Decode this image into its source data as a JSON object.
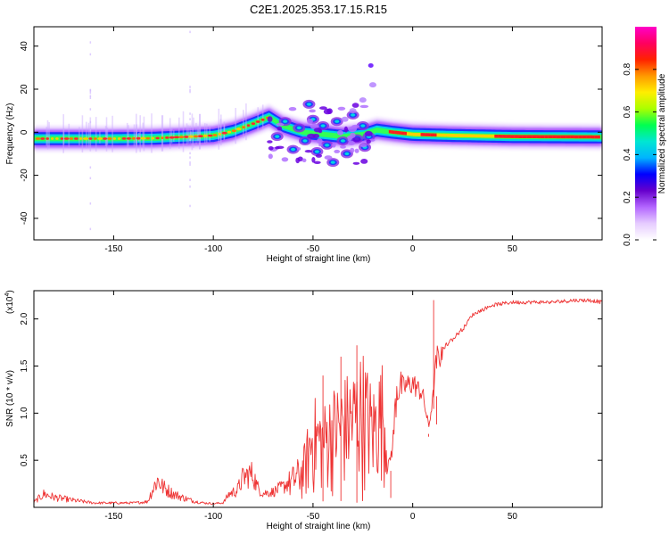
{
  "title": "C2E1.2025.353.17.15.R15",
  "chart_data": [
    {
      "type": "heatmap",
      "name": "spectrogram",
      "xlabel": "Height of straight line (km)",
      "ylabel": "Frequency (Hz)",
      "xlim": [
        -190,
        95
      ],
      "ylim": [
        -50,
        49
      ],
      "xticks": [
        -150,
        -100,
        -50,
        0,
        50
      ],
      "yticks": [
        -40,
        -20,
        0,
        20,
        40
      ],
      "colorbar": {
        "label": "Normalized spectral amplitude",
        "range": [
          0,
          1
        ],
        "ticks": [
          "0.0",
          "0.2",
          "0.4",
          "0.6",
          "0.8"
        ],
        "colors": [
          "#ffffff",
          "#e6ccff",
          "#b366ff",
          "#6600cc",
          "#0000ff",
          "#00b4ff",
          "#00e6d2",
          "#00ff50",
          "#aaff00",
          "#ffee00",
          "#ff9900",
          "#ff2200",
          "#ff0060",
          "#ff00c8"
        ]
      },
      "ridge": [
        [
          -190,
          -3
        ],
        [
          -170,
          -3
        ],
        [
          -150,
          -3
        ],
        [
          -130,
          -2.8
        ],
        [
          -110,
          -2
        ],
        [
          -100,
          -1.5
        ],
        [
          -90,
          0.5
        ],
        [
          -80,
          4
        ],
        [
          -72,
          7
        ],
        [
          -65,
          3
        ],
        [
          -55,
          0
        ],
        [
          -45,
          -1
        ],
        [
          -35,
          -2
        ],
        [
          -25,
          -1
        ],
        [
          -18,
          1
        ],
        [
          -10,
          0
        ],
        [
          0,
          -1
        ],
        [
          20,
          -1.5
        ],
        [
          50,
          -2
        ],
        [
          95,
          -2.2
        ]
      ],
      "scattered_blobs": [
        [
          -68,
          -2
        ],
        [
          -64,
          5
        ],
        [
          -60,
          -8
        ],
        [
          -57,
          2
        ],
        [
          -54,
          -4
        ],
        [
          -52,
          13
        ],
        [
          -50,
          6
        ],
        [
          -48,
          -9
        ],
        [
          -45,
          3
        ],
        [
          -43,
          -6
        ],
        [
          -40,
          -14
        ],
        [
          -38,
          5
        ],
        [
          -35,
          -4
        ],
        [
          -33,
          -10
        ],
        [
          -30,
          8
        ],
        [
          -28,
          -3
        ],
        [
          -25,
          3
        ],
        [
          -24,
          -7
        ],
        [
          -22,
          -2
        ]
      ],
      "arc": [
        [
          -20,
          22
        ],
        [
          -25,
          15
        ],
        [
          -30,
          10
        ],
        [
          -34,
          6
        ]
      ]
    },
    {
      "type": "line",
      "name": "snr",
      "xlabel": "Height of straight line (km)",
      "ylabel": "SNR (10 * v/v)",
      "scale_label": "(x10",
      "scale_exp": "4",
      "scale_close": ")",
      "xlim": [
        -190,
        95
      ],
      "ylim": [
        0,
        2.3
      ],
      "xticks": [
        -150,
        -100,
        -50,
        0,
        50
      ],
      "yticks": [
        "0.5",
        "1.0",
        "1.5",
        "2.0"
      ],
      "series_color": "#ee3333",
      "envelope": [
        [
          -190,
          0.07
        ],
        [
          -185,
          0.2
        ],
        [
          -180,
          0.15
        ],
        [
          -170,
          0.1
        ],
        [
          -160,
          0.06
        ],
        [
          -150,
          0.06
        ],
        [
          -140,
          0.06
        ],
        [
          -133,
          0.08
        ],
        [
          -130,
          0.3
        ],
        [
          -128,
          0.42
        ],
        [
          -125,
          0.3
        ],
        [
          -120,
          0.2
        ],
        [
          -115,
          0.14
        ],
        [
          -110,
          0.09
        ],
        [
          -105,
          0.06
        ],
        [
          -100,
          0.05
        ],
        [
          -95,
          0.06
        ],
        [
          -92,
          0.2
        ],
        [
          -88,
          0.25
        ],
        [
          -85,
          0.45
        ],
        [
          -82,
          0.5
        ],
        [
          -80,
          0.5
        ],
        [
          -78,
          0.3
        ],
        [
          -75,
          0.2
        ],
        [
          -70,
          0.22
        ],
        [
          -65,
          0.3
        ],
        [
          -60,
          0.45
        ],
        [
          -55,
          0.6
        ],
        [
          -50,
          1.2
        ],
        [
          -45,
          1.1
        ],
        [
          -40,
          1.3
        ],
        [
          -35,
          1.4
        ],
        [
          -30,
          1.5
        ],
        [
          -25,
          1.7
        ],
        [
          -20,
          1.3
        ],
        [
          -15,
          1.6
        ],
        [
          -12,
          0.5
        ],
        [
          -10,
          0.75
        ],
        [
          -8,
          1.6
        ],
        [
          -5,
          1.4
        ],
        [
          0,
          1.45
        ],
        [
          5,
          1.3
        ],
        [
          8,
          0.9
        ],
        [
          10,
          1.2
        ],
        [
          12,
          1.75
        ],
        [
          15,
          1.7
        ],
        [
          20,
          1.8
        ],
        [
          25,
          1.9
        ],
        [
          30,
          2.05
        ],
        [
          35,
          2.1
        ],
        [
          40,
          2.15
        ],
        [
          50,
          2.18
        ],
        [
          60,
          2.18
        ],
        [
          70,
          2.18
        ],
        [
          80,
          2.2
        ],
        [
          90,
          2.2
        ],
        [
          95,
          2.18
        ]
      ],
      "lower": [
        [
          -190,
          0.02
        ],
        [
          -100,
          0.02
        ],
        [
          -70,
          0.05
        ],
        [
          -55,
          0.03
        ],
        [
          -40,
          0.08
        ],
        [
          -30,
          0.05
        ],
        [
          -20,
          0.05
        ],
        [
          -14,
          0.2
        ],
        [
          -10,
          0.45
        ],
        [
          -5,
          1.0
        ],
        [
          0,
          1.05
        ],
        [
          5,
          1.0
        ],
        [
          8,
          0.75
        ],
        [
          10,
          1.0
        ],
        [
          15,
          1.45
        ],
        [
          20,
          1.6
        ],
        [
          25,
          1.8
        ],
        [
          30,
          2.0
        ],
        [
          40,
          2.12
        ],
        [
          60,
          2.16
        ],
        [
          95,
          2.15
        ]
      ],
      "spikes": [
        [
          10.5,
          2.2
        ],
        [
          12,
          0.88
        ],
        [
          8,
          0.78
        ],
        [
          -11,
          0.1
        ],
        [
          -36,
          1.6
        ],
        [
          -28,
          1.72
        ],
        [
          -45,
          1.4
        ]
      ]
    }
  ]
}
